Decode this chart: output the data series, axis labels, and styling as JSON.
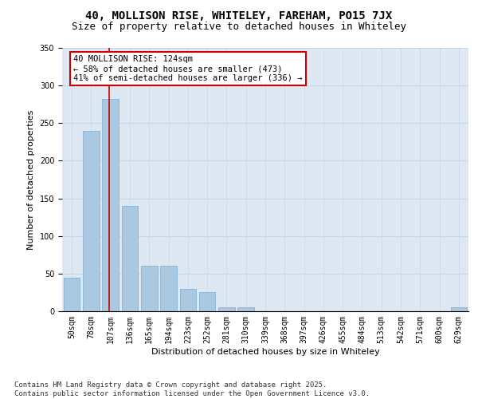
{
  "title_line1": "40, MOLLISON RISE, WHITELEY, FAREHAM, PO15 7JX",
  "title_line2": "Size of property relative to detached houses in Whiteley",
  "xlabel": "Distribution of detached houses by size in Whiteley",
  "ylabel": "Number of detached properties",
  "categories": [
    "50sqm",
    "78sqm",
    "107sqm",
    "136sqm",
    "165sqm",
    "194sqm",
    "223sqm",
    "252sqm",
    "281sqm",
    "310sqm",
    "339sqm",
    "368sqm",
    "397sqm",
    "426sqm",
    "455sqm",
    "484sqm",
    "513sqm",
    "542sqm",
    "571sqm",
    "600sqm",
    "629sqm"
  ],
  "values": [
    45,
    240,
    282,
    140,
    60,
    60,
    30,
    25,
    5,
    5,
    0,
    0,
    0,
    0,
    0,
    0,
    0,
    0,
    0,
    0,
    5
  ],
  "bar_color": "#aac8e0",
  "bar_edge_color": "#7aadd5",
  "grid_color": "#c8d8e8",
  "background_color": "#dde8f2",
  "annotation_text": "40 MOLLISON RISE: 124sqm\n← 58% of detached houses are smaller (473)\n41% of semi-detached houses are larger (336) →",
  "annotation_box_color": "#ffffff",
  "annotation_box_edge": "#cc0000",
  "property_line_color": "#cc0000",
  "property_line_x": 1.925,
  "ylim": [
    0,
    350
  ],
  "yticks": [
    0,
    50,
    100,
    150,
    200,
    250,
    300,
    350
  ],
  "footnote": "Contains HM Land Registry data © Crown copyright and database right 2025.\nContains public sector information licensed under the Open Government Licence v3.0.",
  "title_fontsize": 10,
  "subtitle_fontsize": 9,
  "axis_label_fontsize": 8,
  "tick_fontsize": 7,
  "annotation_fontsize": 7.5,
  "footnote_fontsize": 6.5
}
